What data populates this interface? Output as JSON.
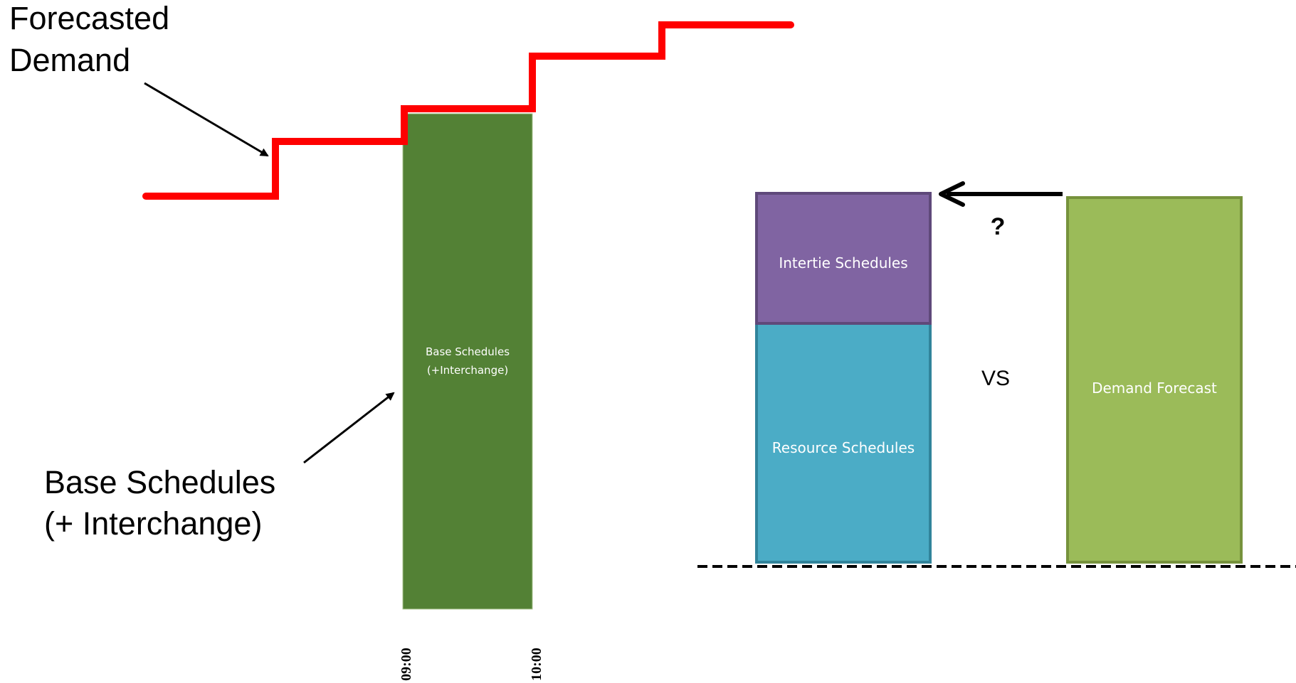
{
  "left_panel": {
    "forecast_label_line1": "Forecasted",
    "forecast_label_line2": "Demand",
    "base_label_line1": "Base Schedules",
    "base_label_line2": "(+ Interchange)",
    "bar_label_line1": "Base Schedules",
    "bar_label_line2": "(+Interchange)",
    "tick_start": "09:00",
    "tick_end": "10:00",
    "colors": {
      "demand_line": "#ff0000",
      "base_bar": "#538135"
    }
  },
  "right_panel": {
    "intertie_label": "Intertie Schedules",
    "resource_label": "Resource Schedules",
    "demand_label": "Demand Forecast",
    "question_mark": "?",
    "versus_label": "VS",
    "colors": {
      "intertie": "#8064a2",
      "resource": "#4bacc6",
      "demand": "#9bbb59"
    }
  }
}
